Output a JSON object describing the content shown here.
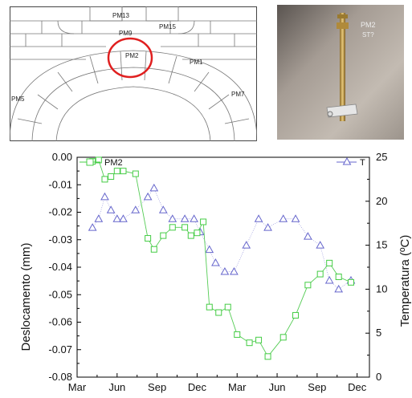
{
  "figure": {
    "drawing_labels": [
      "PM13",
      "PM15",
      "PM9",
      "PM2",
      "PM1",
      "PM5",
      "PM7"
    ],
    "photo_text": [
      "PM2",
      "ST?"
    ],
    "colors": {
      "pm2": "#44cc44",
      "t": "#6666cc",
      "highlight": "#e02020"
    }
  },
  "chart_data": {
    "type": "line",
    "x_categories": [
      "Mar",
      "Jun",
      "Sep",
      "Dec",
      "Mar",
      "Jun",
      "Sep",
      "Dec"
    ],
    "ylabel": "Deslocamento (mm)",
    "ylabel_right": "Temperatura (ºC)",
    "ylim": [
      -0.08,
      0.0
    ],
    "ylim_right": [
      0,
      25
    ],
    "y_ticks": [
      "0.00",
      "-0.01",
      "-0.02",
      "-0.03",
      "-0.04",
      "-0.05",
      "-0.06",
      "-0.07",
      "-0.08"
    ],
    "y_ticks_right": [
      "25",
      "20",
      "15",
      "10",
      "5",
      "0"
    ],
    "legend": [
      {
        "name": "PM2",
        "marker": "square",
        "position": "top-left"
      },
      {
        "name": "T",
        "marker": "triangle",
        "position": "top-right"
      }
    ],
    "series": [
      {
        "name": "PM2",
        "axis": "left",
        "x": [
          1.0,
          1.2,
          1.4,
          1.6,
          1.8,
          2.0,
          2.4,
          2.8,
          3.0,
          3.3,
          3.6,
          4.0,
          4.2,
          4.4,
          4.6,
          4.8,
          5.1,
          5.4,
          5.7,
          6.1,
          6.4,
          6.7,
          7.2,
          7.6,
          8.0,
          8.4,
          8.7,
          9.0,
          9.4
        ],
        "values": [
          -0.0015,
          -0.001,
          -0.008,
          -0.007,
          -0.005,
          -0.005,
          -0.006,
          -0.0295,
          -0.0335,
          -0.0285,
          -0.0255,
          -0.0255,
          -0.0285,
          -0.0275,
          -0.0235,
          -0.0545,
          -0.0565,
          -0.0545,
          -0.0645,
          -0.0675,
          -0.0665,
          -0.0725,
          -0.0655,
          -0.0575,
          -0.0465,
          -0.0425,
          -0.0385,
          -0.0435,
          -0.0455
        ]
      },
      {
        "name": "T",
        "axis": "right",
        "x": [
          1.0,
          1.2,
          1.4,
          1.6,
          1.8,
          2.0,
          2.4,
          2.8,
          3.0,
          3.3,
          3.6,
          4.0,
          4.3,
          4.5,
          4.8,
          5.0,
          5.3,
          5.6,
          6.0,
          6.4,
          6.7,
          7.2,
          7.6,
          8.0,
          8.4,
          8.7,
          9.0,
          9.4
        ],
        "values": [
          17,
          18,
          20.5,
          19,
          18,
          18,
          19,
          20.5,
          21.5,
          19,
          18,
          18,
          18,
          16.5,
          14.5,
          13,
          12,
          12,
          15,
          18,
          17,
          18,
          18,
          16,
          15,
          11,
          10,
          11
        ]
      }
    ]
  }
}
